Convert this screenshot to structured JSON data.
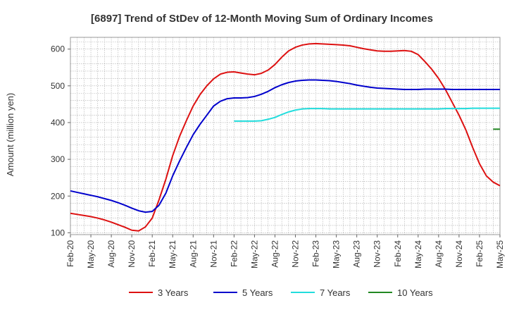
{
  "chart_data": {
    "type": "line",
    "title": "[6897]  Trend of StDev of 12-Month Moving Sum of Ordinary Incomes",
    "xlabel": "",
    "ylabel": "Amount (million yen)",
    "ylim": [
      95,
      632
    ],
    "yticks": [
      100,
      200,
      300,
      400,
      500,
      600
    ],
    "x_tick_labels": [
      "Feb-20",
      "May-20",
      "Aug-20",
      "Nov-20",
      "Feb-21",
      "May-21",
      "Aug-21",
      "Nov-21",
      "Feb-22",
      "May-22",
      "Aug-22",
      "Nov-22",
      "Feb-23",
      "May-23",
      "Aug-23",
      "Nov-23",
      "Feb-24",
      "May-24",
      "Aug-24",
      "Nov-24",
      "Feb-25",
      "May-25"
    ],
    "x_unit": "month index from Feb-20",
    "grid": true,
    "legend_position": "bottom",
    "series": [
      {
        "name": "3 Years",
        "color": "#dd1111",
        "points": [
          [
            0,
            153
          ],
          [
            1,
            150
          ],
          [
            2,
            147
          ],
          [
            3,
            144
          ],
          [
            4,
            140
          ],
          [
            5,
            135
          ],
          [
            6,
            129
          ],
          [
            7,
            122
          ],
          [
            8,
            115
          ],
          [
            9,
            107
          ],
          [
            10,
            105
          ],
          [
            11,
            116
          ],
          [
            12,
            140
          ],
          [
            13,
            190
          ],
          [
            14,
            246
          ],
          [
            15,
            310
          ],
          [
            16,
            362
          ],
          [
            17,
            405
          ],
          [
            18,
            445
          ],
          [
            19,
            476
          ],
          [
            20,
            500
          ],
          [
            21,
            519
          ],
          [
            22,
            532
          ],
          [
            23,
            537
          ],
          [
            24,
            538
          ],
          [
            25,
            535
          ],
          [
            26,
            532
          ],
          [
            27,
            530
          ],
          [
            28,
            534
          ],
          [
            29,
            543
          ],
          [
            30,
            558
          ],
          [
            31,
            578
          ],
          [
            32,
            595
          ],
          [
            33,
            605
          ],
          [
            34,
            611
          ],
          [
            35,
            614
          ],
          [
            36,
            615
          ],
          [
            37,
            614
          ],
          [
            38,
            613
          ],
          [
            39,
            612
          ],
          [
            40,
            611
          ],
          [
            41,
            609
          ],
          [
            42,
            605
          ],
          [
            43,
            601
          ],
          [
            44,
            598
          ],
          [
            45,
            595
          ],
          [
            46,
            594
          ],
          [
            47,
            594
          ],
          [
            48,
            595
          ],
          [
            49,
            596
          ],
          [
            50,
            594
          ],
          [
            51,
            585
          ],
          [
            52,
            566
          ],
          [
            53,
            545
          ],
          [
            54,
            520
          ],
          [
            55,
            490
          ],
          [
            56,
            455
          ],
          [
            57,
            420
          ],
          [
            58,
            380
          ],
          [
            59,
            332
          ],
          [
            60,
            288
          ],
          [
            61,
            255
          ],
          [
            62,
            238
          ],
          [
            63,
            228
          ]
        ]
      },
      {
        "name": "5 Years",
        "color": "#0000cc",
        "points": [
          [
            0,
            214
          ],
          [
            1,
            210
          ],
          [
            2,
            206
          ],
          [
            3,
            202
          ],
          [
            4,
            198
          ],
          [
            5,
            193
          ],
          [
            6,
            188
          ],
          [
            7,
            182
          ],
          [
            8,
            175
          ],
          [
            9,
            167
          ],
          [
            10,
            160
          ],
          [
            11,
            156
          ],
          [
            12,
            158
          ],
          [
            13,
            175
          ],
          [
            14,
            208
          ],
          [
            15,
            255
          ],
          [
            16,
            295
          ],
          [
            17,
            332
          ],
          [
            18,
            367
          ],
          [
            19,
            395
          ],
          [
            20,
            420
          ],
          [
            21,
            445
          ],
          [
            22,
            458
          ],
          [
            23,
            465
          ],
          [
            24,
            467
          ],
          [
            25,
            467
          ],
          [
            26,
            468
          ],
          [
            27,
            471
          ],
          [
            28,
            477
          ],
          [
            29,
            485
          ],
          [
            30,
            495
          ],
          [
            31,
            503
          ],
          [
            32,
            509
          ],
          [
            33,
            513
          ],
          [
            34,
            515
          ],
          [
            35,
            516
          ],
          [
            36,
            516
          ],
          [
            37,
            515
          ],
          [
            38,
            514
          ],
          [
            39,
            512
          ],
          [
            40,
            509
          ],
          [
            41,
            506
          ],
          [
            42,
            502
          ],
          [
            43,
            499
          ],
          [
            44,
            496
          ],
          [
            45,
            494
          ],
          [
            46,
            493
          ],
          [
            47,
            492
          ],
          [
            48,
            491
          ],
          [
            49,
            490
          ],
          [
            50,
            490
          ],
          [
            51,
            490
          ],
          [
            52,
            491
          ],
          [
            53,
            491
          ],
          [
            54,
            491
          ],
          [
            55,
            491
          ],
          [
            56,
            490
          ],
          [
            57,
            490
          ],
          [
            58,
            490
          ],
          [
            59,
            490
          ],
          [
            60,
            490
          ],
          [
            61,
            490
          ],
          [
            62,
            490
          ],
          [
            63,
            490
          ]
        ]
      },
      {
        "name": "7 Years",
        "color": "#22dddd",
        "points": [
          [
            24,
            404
          ],
          [
            25,
            404
          ],
          [
            26,
            404
          ],
          [
            27,
            404
          ],
          [
            28,
            405
          ],
          [
            29,
            409
          ],
          [
            30,
            414
          ],
          [
            31,
            422
          ],
          [
            32,
            429
          ],
          [
            33,
            434
          ],
          [
            34,
            437
          ],
          [
            35,
            438
          ],
          [
            36,
            438
          ],
          [
            37,
            438
          ],
          [
            38,
            437
          ],
          [
            39,
            437
          ],
          [
            40,
            437
          ],
          [
            41,
            437
          ],
          [
            42,
            437
          ],
          [
            43,
            437
          ],
          [
            44,
            437
          ],
          [
            45,
            437
          ],
          [
            46,
            437
          ],
          [
            47,
            437
          ],
          [
            48,
            437
          ],
          [
            49,
            437
          ],
          [
            50,
            437
          ],
          [
            51,
            437
          ],
          [
            52,
            437
          ],
          [
            53,
            437
          ],
          [
            54,
            437
          ],
          [
            55,
            438
          ],
          [
            56,
            438
          ],
          [
            57,
            438
          ],
          [
            58,
            438
          ],
          [
            59,
            439
          ],
          [
            60,
            439
          ],
          [
            61,
            439
          ],
          [
            62,
            439
          ],
          [
            63,
            439
          ]
        ]
      },
      {
        "name": "10 Years",
        "color": "#228822",
        "points": [
          [
            62,
            382
          ],
          [
            63,
            382
          ]
        ]
      }
    ]
  }
}
